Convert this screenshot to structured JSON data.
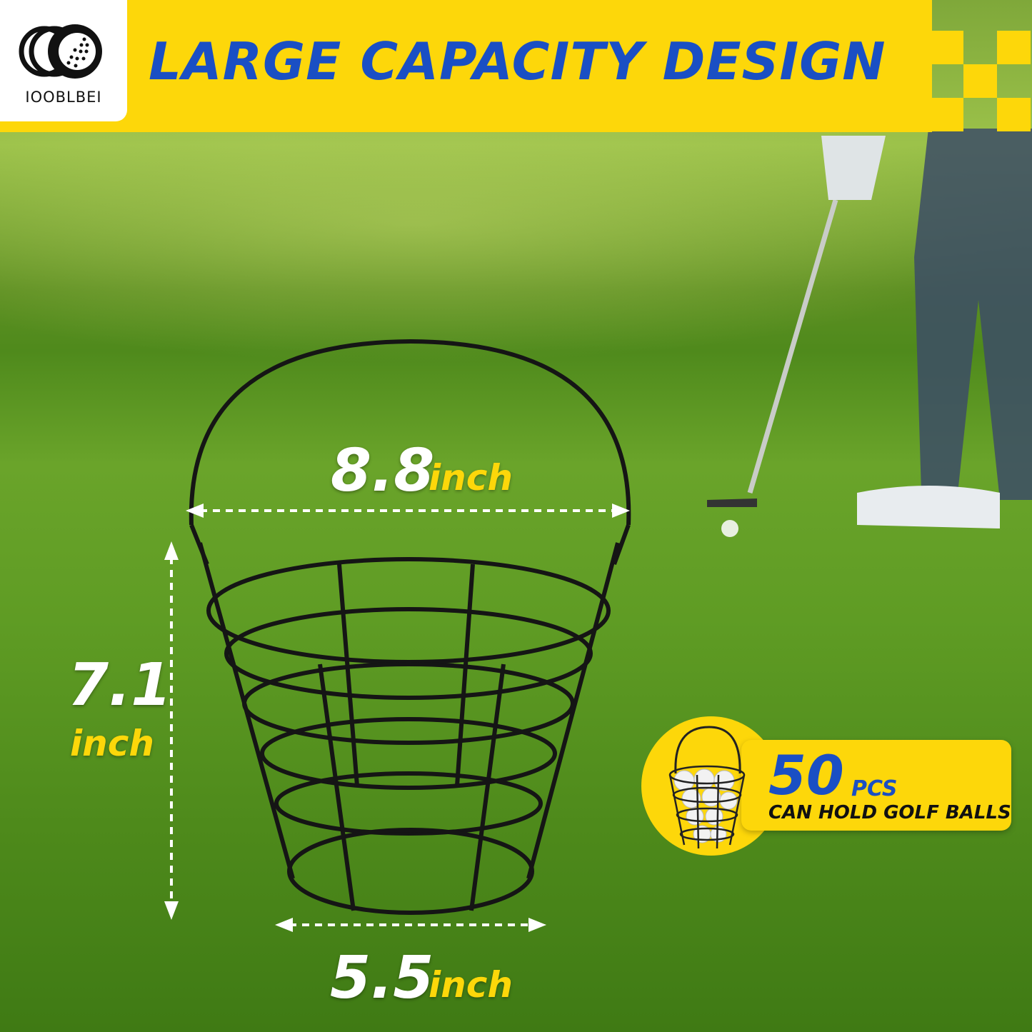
{
  "brand": {
    "name": "IOOBLBEI"
  },
  "header": {
    "title": "LARGE CAPACITY DESIGN"
  },
  "dimensions": {
    "top": {
      "value": "8.8",
      "unit": "inch"
    },
    "height": {
      "value": "7.1",
      "unit": "inch"
    },
    "bottom": {
      "value": "5.5",
      "unit": "inch"
    }
  },
  "badge": {
    "count": "50",
    "count_unit": "PCS",
    "caption": "CAN HOLD GOLF BALLS"
  },
  "colors": {
    "accent_yellow": "#fdd70a",
    "title_blue": "#1a4fc4",
    "grass": "#5f9c24"
  }
}
